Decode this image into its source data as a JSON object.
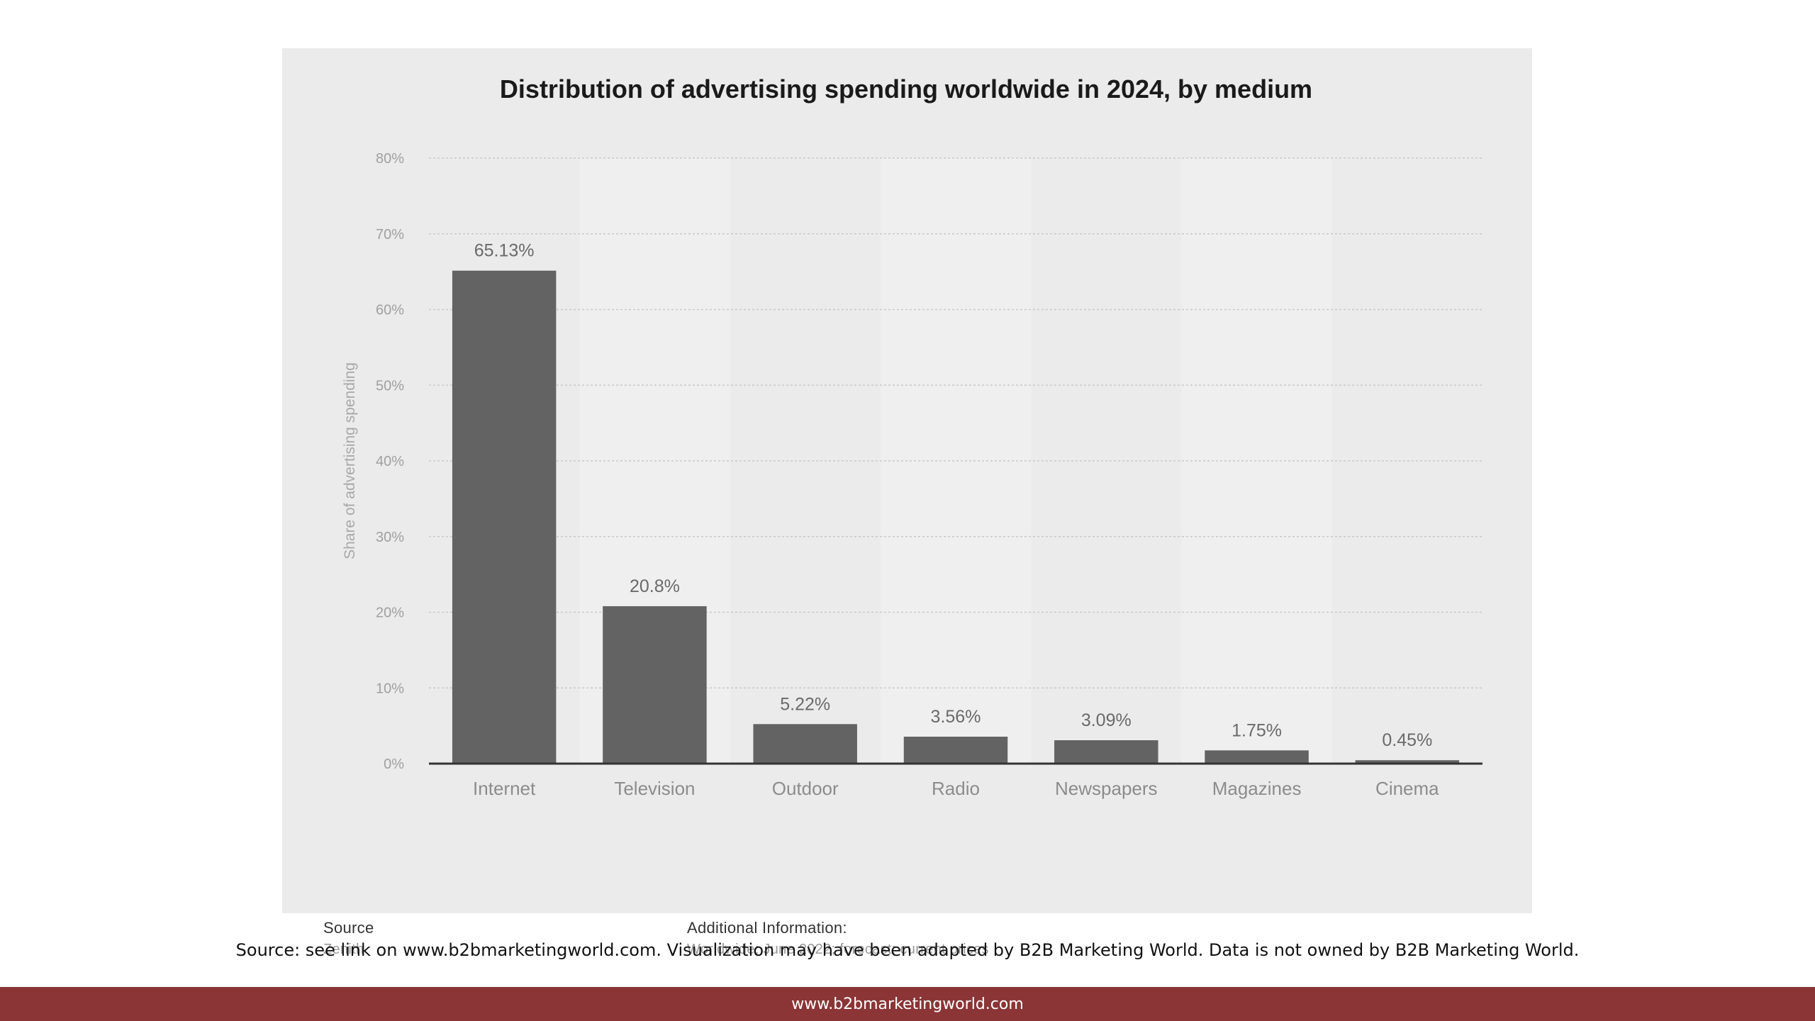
{
  "chart_data": {
    "type": "bar",
    "title": "Distribution of advertising spending worldwide in 2024, by medium",
    "xlabel": "",
    "ylabel": "Share of advertising spending",
    "categories": [
      "Internet",
      "Television",
      "Outdoor",
      "Radio",
      "Newspapers",
      "Magazines",
      "Cinema"
    ],
    "values": [
      65.13,
      20.8,
      5.22,
      3.56,
      3.09,
      1.75,
      0.45
    ],
    "data_labels": [
      "65.13%",
      "20.8%",
      "5.22%",
      "3.56%",
      "3.09%",
      "1.75%",
      "0.45%"
    ],
    "ylim": [
      0,
      80
    ],
    "yticks": [
      0,
      10,
      20,
      30,
      40,
      50,
      60,
      70,
      80
    ],
    "ytick_labels": [
      "0%",
      "10%",
      "20%",
      "30%",
      "40%",
      "50%",
      "60%",
      "70%",
      "80%"
    ],
    "grid": true,
    "legend": "none",
    "bar_color": "#636363"
  },
  "source": {
    "title": "Source",
    "text": "Zenith"
  },
  "additional_info": {
    "title": "Additional Information:",
    "text": "Worldwide; June 2022; forecast; current prices"
  },
  "disclaimer": "Source: see link on www.b2bmarketingworld.com. Visualization may have been adapted by B2B Marketing World. Data is not owned by B2B Marketing World.",
  "footer": {
    "url": "www.b2bmarketingworld.com"
  }
}
